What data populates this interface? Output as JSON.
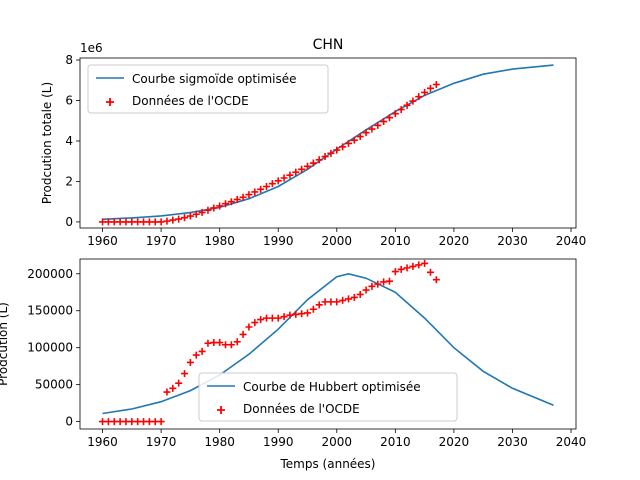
{
  "figure_title": "CHN",
  "colors": {
    "model": "#1f77b4",
    "oecd": "#ff0000",
    "axes": "#000000",
    "legend_border": "#cccccc"
  },
  "chart_data": [
    {
      "type": "line",
      "title": "CHN",
      "xlabel": "",
      "ylabel": "Prodcution totale (L)",
      "offset_label": "1e6",
      "xlim": [
        1956.15,
        2040.85
      ],
      "ylim": [
        -0.3,
        8.1
      ],
      "xticks": [
        1960,
        1970,
        1980,
        1990,
        2000,
        2010,
        2020,
        2030,
        2040
      ],
      "yticks": [
        0,
        2,
        4,
        6,
        8
      ],
      "grid": false,
      "legend_placement": "upper-left",
      "series": [
        {
          "name": "Courbe sigmoïde optimisée",
          "kind": "line",
          "x": [
            1960,
            1965,
            1970,
            1975,
            1980,
            1985,
            1990,
            1995,
            2000,
            2005,
            2010,
            2015,
            2020,
            2025,
            2030,
            2037
          ],
          "y": [
            0.13,
            0.2,
            0.3,
            0.46,
            0.72,
            1.15,
            1.75,
            2.6,
            3.6,
            4.55,
            5.45,
            6.25,
            6.85,
            7.3,
            7.55,
            7.75
          ]
        },
        {
          "name": "Données de l'OCDE",
          "kind": "scatter",
          "marker": "+",
          "x": [
            1960,
            1961,
            1962,
            1963,
            1964,
            1965,
            1966,
            1967,
            1968,
            1969,
            1970,
            1971,
            1972,
            1973,
            1974,
            1975,
            1976,
            1977,
            1978,
            1979,
            1980,
            1981,
            1982,
            1983,
            1984,
            1985,
            1986,
            1987,
            1988,
            1989,
            1990,
            1991,
            1992,
            1993,
            1994,
            1995,
            1996,
            1997,
            1998,
            1999,
            2000,
            2001,
            2002,
            2003,
            2004,
            2005,
            2006,
            2007,
            2008,
            2009,
            2010,
            2011,
            2012,
            2013,
            2014,
            2015,
            2016,
            2017
          ],
          "y": [
            0,
            0,
            0,
            0,
            0,
            0,
            0,
            0,
            0,
            0,
            0,
            0.04,
            0.09,
            0.14,
            0.21,
            0.29,
            0.38,
            0.47,
            0.58,
            0.69,
            0.79,
            0.9,
            1.0,
            1.11,
            1.22,
            1.35,
            1.48,
            1.61,
            1.75,
            1.89,
            2.03,
            2.17,
            2.31,
            2.46,
            2.6,
            2.75,
            2.91,
            3.07,
            3.23,
            3.39,
            3.55,
            3.71,
            3.88,
            4.04,
            4.22,
            4.41,
            4.59,
            4.77,
            4.96,
            5.15,
            5.35,
            5.55,
            5.76,
            5.97,
            6.19,
            6.4,
            6.6,
            6.79
          ]
        }
      ]
    },
    {
      "type": "line",
      "title": "",
      "xlabel": "Temps (années)",
      "ylabel": "Prodcution (L)",
      "xlim": [
        1956.15,
        2040.85
      ],
      "ylim": [
        -10000,
        220000
      ],
      "xticks": [
        1960,
        1970,
        1980,
        1990,
        2000,
        2010,
        2020,
        2030,
        2040
      ],
      "yticks": [
        0,
        50000,
        100000,
        150000,
        200000
      ],
      "grid": false,
      "legend_placement": "lower-center",
      "series": [
        {
          "name": "Courbe de Hubbert optimisée",
          "kind": "line",
          "x": [
            1960,
            1965,
            1970,
            1975,
            1980,
            1985,
            1990,
            1995,
            2000,
            2002,
            2005,
            2010,
            2015,
            2020,
            2025,
            2030,
            2037
          ],
          "y": [
            11000,
            17000,
            27000,
            42000,
            63000,
            91000,
            125000,
            165000,
            196000,
            200000,
            194000,
            175000,
            140000,
            100000,
            68000,
            45000,
            22000
          ]
        },
        {
          "name": "Données de l'OCDE",
          "kind": "scatter",
          "marker": "+",
          "x": [
            1960,
            1961,
            1962,
            1963,
            1964,
            1965,
            1966,
            1967,
            1968,
            1969,
            1970,
            1971,
            1972,
            1973,
            1974,
            1975,
            1976,
            1977,
            1978,
            1979,
            1980,
            1981,
            1982,
            1983,
            1984,
            1985,
            1986,
            1987,
            1988,
            1989,
            1990,
            1991,
            1992,
            1993,
            1994,
            1995,
            1996,
            1997,
            1998,
            1999,
            2000,
            2001,
            2002,
            2003,
            2004,
            2005,
            2006,
            2007,
            2008,
            2009,
            2010,
            2011,
            2012,
            2013,
            2014,
            2015,
            2016,
            2017
          ],
          "y": [
            0,
            0,
            0,
            0,
            0,
            0,
            0,
            0,
            0,
            0,
            0,
            40000,
            45000,
            52000,
            65000,
            80000,
            90000,
            95000,
            106000,
            107000,
            107000,
            104000,
            104000,
            108000,
            118000,
            128000,
            134000,
            138000,
            140000,
            140000,
            140000,
            142000,
            144000,
            145000,
            146000,
            147000,
            152000,
            158000,
            162000,
            162000,
            162000,
            164000,
            166000,
            168000,
            172000,
            178000,
            183000,
            186000,
            189000,
            190000,
            203000,
            206000,
            208000,
            210000,
            212000,
            214000,
            202000,
            192000
          ]
        }
      ]
    }
  ]
}
